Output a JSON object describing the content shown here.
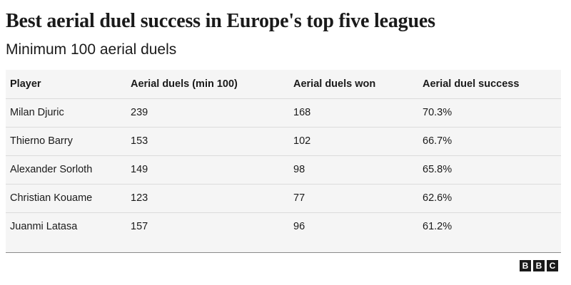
{
  "title": "Best aerial duel success in Europe's top five leagues",
  "subtitle": "Minimum 100 aerial duels",
  "table": {
    "headers": [
      "Player",
      "Aerial duels (min 100)",
      "Aerial duels won",
      "Aerial duel success"
    ],
    "rows": [
      [
        "Milan Djuric",
        "239",
        "168",
        "70.3%"
      ],
      [
        "Thierno Barry",
        "153",
        "102",
        "66.7%"
      ],
      [
        "Alexander Sorloth",
        "149",
        "98",
        "65.8%"
      ],
      [
        "Christian Kouame",
        "123",
        "77",
        "62.6%"
      ],
      [
        "Juanmi Latasa",
        "157",
        "96",
        "61.2%"
      ]
    ]
  },
  "logo": {
    "letters": [
      "B",
      "B",
      "C"
    ]
  }
}
